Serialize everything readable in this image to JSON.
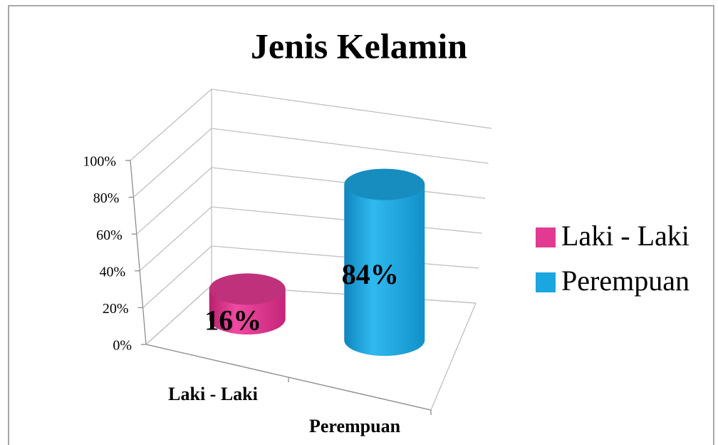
{
  "chart_data": {
    "type": "bar3d-cylinder",
    "title": "Jenis Kelamin",
    "categories": [
      "Laki - Laki",
      "Perempuan"
    ],
    "values": [
      16,
      84
    ],
    "value_labels": [
      "16%",
      "84%"
    ],
    "colors": [
      "#e23a92",
      "#1aa6df"
    ],
    "ylim": [
      0,
      100
    ],
    "yticks": [
      {
        "value": 0,
        "label": "0%"
      },
      {
        "value": 20,
        "label": "20%"
      },
      {
        "value": 40,
        "label": "40%"
      },
      {
        "value": 60,
        "label": "60%"
      },
      {
        "value": 80,
        "label": "80%"
      },
      {
        "value": 100,
        "label": "100%"
      }
    ],
    "grid": true,
    "legend": "right"
  }
}
